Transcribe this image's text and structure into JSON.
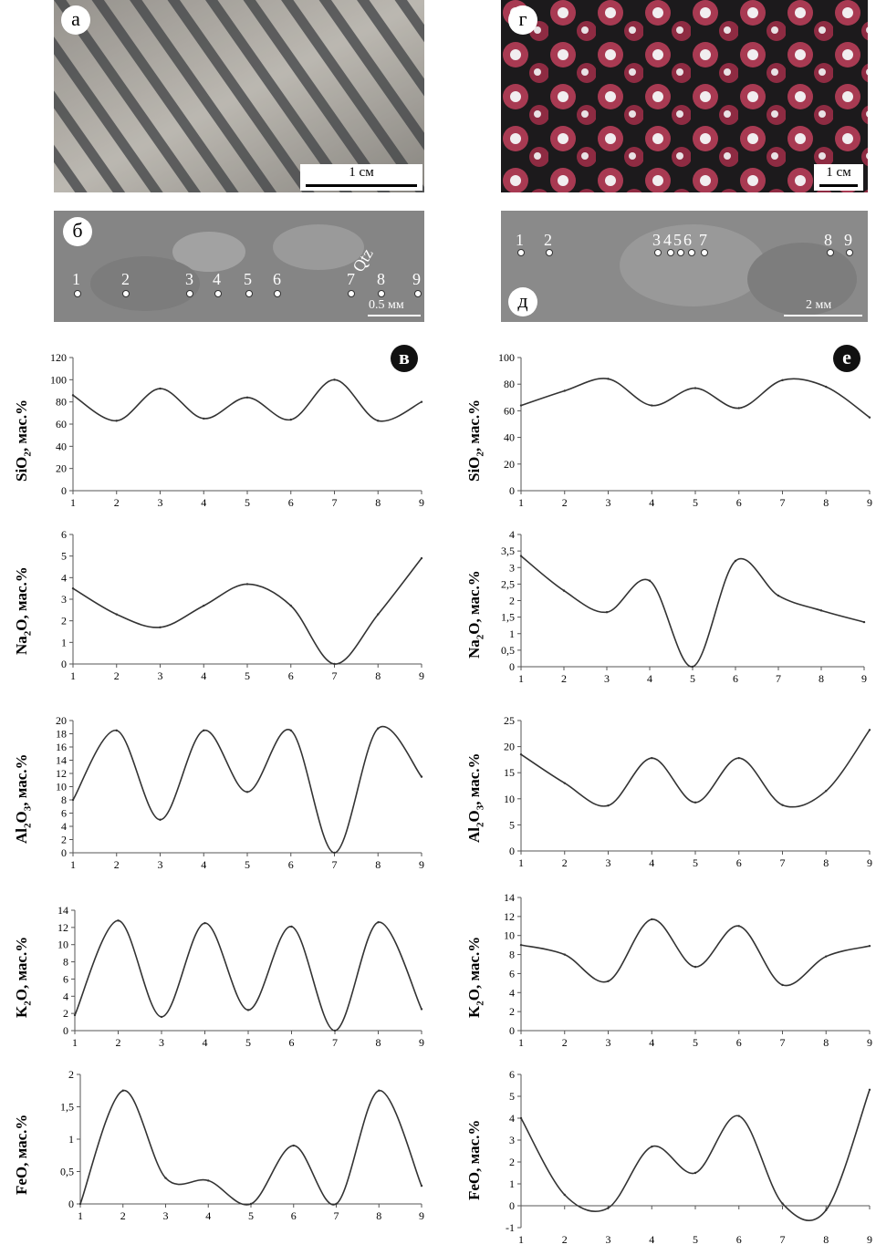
{
  "photos": {
    "a": {
      "label": "а",
      "scale": "1 см"
    },
    "b": {
      "label": "б",
      "points": [
        "1",
        "2",
        "3",
        "4",
        "5",
        "6",
        "7",
        "8",
        "9"
      ],
      "mineral": "Qtz",
      "scale": "0.5 мм"
    },
    "g": {
      "label": "г",
      "scale": "1 см"
    },
    "d": {
      "label": "д",
      "points": [
        "1",
        "2",
        "3",
        "4",
        "5",
        "6",
        "7",
        "8",
        "9"
      ],
      "scale": "2 мм"
    }
  },
  "badges": {
    "left": "в",
    "right": "е"
  },
  "ylabel_suffix": ", мас.%",
  "colors": {
    "line": "#333333",
    "axis": "#555555"
  },
  "chart_data": [
    {
      "type": "line",
      "panel": "в",
      "oxide": "SiO",
      "sub": "2",
      "x": [
        1,
        2,
        3,
        4,
        5,
        6,
        7,
        8,
        9
      ],
      "y": [
        86,
        63,
        92,
        65,
        84,
        64,
        100,
        63,
        80
      ],
      "ylim": [
        0,
        120
      ],
      "yticks": [
        0,
        20,
        40,
        60,
        80,
        100,
        120
      ]
    },
    {
      "type": "line",
      "panel": "в",
      "oxide": "Na",
      "sub": "2",
      "oxide2": "O",
      "x": [
        1,
        2,
        3,
        4,
        5,
        6,
        7,
        8,
        9
      ],
      "y": [
        3.5,
        2.3,
        1.7,
        2.7,
        3.7,
        2.7,
        0,
        2.3,
        4.9
      ],
      "ylim": [
        0,
        6
      ],
      "yticks": [
        0,
        1,
        2,
        3,
        4,
        5,
        6
      ]
    },
    {
      "type": "line",
      "panel": "в",
      "oxide": "Al",
      "sub": "2",
      "oxide2": "O",
      "sub2": "3",
      "x": [
        1,
        2,
        3,
        4,
        5,
        6,
        7,
        8,
        9
      ],
      "y": [
        8,
        18.5,
        5,
        18.5,
        9.2,
        18.5,
        0,
        18.8,
        11.5
      ],
      "ylim": [
        0,
        20
      ],
      "yticks": [
        0,
        2,
        4,
        6,
        8,
        10,
        12,
        14,
        16,
        18,
        20
      ]
    },
    {
      "type": "line",
      "panel": "в",
      "oxide": "K",
      "sub": "2",
      "oxide2": "O",
      "x": [
        1,
        2,
        3,
        4,
        5,
        6,
        7,
        8,
        9
      ],
      "y": [
        1.8,
        12.8,
        1.6,
        12.5,
        2.4,
        12.1,
        0,
        12.6,
        2.5
      ],
      "ylim": [
        0,
        14
      ],
      "yticks": [
        0,
        2,
        4,
        6,
        8,
        10,
        12,
        14
      ]
    },
    {
      "type": "line",
      "panel": "в",
      "oxide": "FeO",
      "x": [
        1,
        2,
        3,
        4,
        5,
        6,
        7,
        8,
        9
      ],
      "y": [
        0,
        1.75,
        0.4,
        0.36,
        0,
        0.9,
        0,
        1.75,
        0.28
      ],
      "ylim": [
        0,
        2
      ],
      "yticks": [
        0,
        0.5,
        1,
        1.5,
        2
      ],
      "ytick_labels": [
        "0",
        "0,5",
        "1",
        "1,5",
        "2"
      ]
    },
    {
      "type": "line",
      "panel": "е",
      "oxide": "SiO",
      "sub": "2",
      "x": [
        1,
        2,
        3,
        4,
        5,
        6,
        7,
        8,
        9
      ],
      "y": [
        64,
        75,
        84,
        64,
        77,
        62,
        83,
        78,
        55
      ],
      "ylim": [
        0,
        100
      ],
      "yticks": [
        0,
        20,
        40,
        60,
        80,
        100
      ]
    },
    {
      "type": "line",
      "panel": "е",
      "oxide": "Na",
      "sub": "2",
      "oxide2": "O",
      "x": [
        1,
        2,
        3,
        4,
        5,
        6,
        7,
        8,
        9
      ],
      "y": [
        3.35,
        2.3,
        1.65,
        2.6,
        0,
        3.2,
        2.15,
        1.7,
        1.35
      ],
      "ylim": [
        0,
        4
      ],
      "yticks": [
        0,
        0.5,
        1,
        1.5,
        2,
        2.5,
        3,
        3.5,
        4
      ],
      "ytick_labels": [
        "0",
        "0,5",
        "1",
        "1,5",
        "2",
        "2,5",
        "3",
        "3,5",
        "4"
      ]
    },
    {
      "type": "line",
      "panel": "е",
      "oxide": "Al",
      "sub": "2",
      "oxide2": "O",
      "sub2": "3",
      "x": [
        1,
        2,
        3,
        4,
        5,
        6,
        7,
        8,
        9
      ],
      "y": [
        18.5,
        13,
        8.7,
        17.8,
        9.3,
        17.8,
        8.8,
        11.5,
        23.2
      ],
      "ylim": [
        0,
        25
      ],
      "yticks": [
        0,
        5,
        10,
        15,
        20,
        25
      ]
    },
    {
      "type": "line",
      "panel": "е",
      "oxide": "K",
      "sub": "2",
      "oxide2": "O",
      "x": [
        1,
        2,
        3,
        4,
        5,
        6,
        7,
        8,
        9
      ],
      "y": [
        9,
        8,
        5.2,
        11.7,
        6.7,
        11,
        4.8,
        7.8,
        8.9
      ],
      "ylim": [
        0,
        14
      ],
      "yticks": [
        0,
        2,
        4,
        6,
        8,
        10,
        12,
        14
      ]
    },
    {
      "type": "line",
      "panel": "е",
      "oxide": "FeO",
      "x": [
        1,
        2,
        3,
        4,
        5,
        6,
        7,
        8,
        9
      ],
      "y": [
        4,
        0.5,
        -0.1,
        2.7,
        1.5,
        4.1,
        0.1,
        -0.2,
        5.3
      ],
      "ylim": [
        -1,
        6
      ],
      "yticks": [
        -1,
        0,
        1,
        2,
        3,
        4,
        5,
        6
      ]
    }
  ]
}
